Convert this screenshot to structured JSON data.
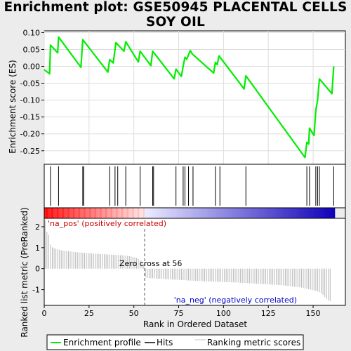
{
  "title_line1": "Enrichment plot: GSE50945 PLACENTAL CELLS",
  "title_line2": "SOY OIL",
  "chart_data": {
    "type": "line",
    "xlabel": "Rank in Ordered Dataset",
    "xlim": [
      0,
      168
    ],
    "x_ticks": [
      0,
      25,
      50,
      75,
      100,
      125,
      150
    ],
    "top_panel": {
      "ylabel": "Enrichment score (ES)",
      "ylim": [
        -0.29,
        0.105
      ],
      "y_ticks": [
        0.1,
        0.05,
        0.0,
        -0.05,
        -0.1,
        -0.15,
        -0.2,
        -0.25
      ],
      "y_tick_labels": [
        "0.10",
        "0.05",
        "0.00",
        "-0.05",
        "-0.10",
        "-0.15",
        "-0.20",
        "-0.25"
      ],
      "series": [
        {
          "color": "#00ee00",
          "x": [
            0,
            3,
            3.5,
            7.5,
            8,
            20.5,
            21.5,
            35.5,
            36.5,
            38.5,
            40,
            44.5,
            45.5,
            52.5,
            53.5,
            59.5,
            60.5,
            72.5,
            73.5,
            76.5,
            77.5,
            78.5,
            79.5,
            81.5,
            82.5,
            94.5,
            95.5,
            96.5,
            97.5,
            111.5,
            112.5,
            145.5,
            146.5,
            147.5,
            148,
            150.5,
            151.5,
            152.5,
            153.5,
            160.5,
            161.5
          ],
          "y": [
            -0.01,
            -0.022,
            0.063,
            0.04,
            0.087,
            -0.003,
            0.079,
            -0.017,
            0.02,
            0.01,
            0.07,
            0.045,
            0.073,
            0.013,
            0.045,
            0.002,
            0.045,
            -0.037,
            -0.008,
            -0.03,
            0.0,
            0.027,
            0.021,
            0.047,
            0.037,
            -0.02,
            0.012,
            0.005,
            0.031,
            -0.067,
            -0.028,
            -0.27,
            -0.225,
            -0.23,
            -0.183,
            -0.205,
            -0.13,
            -0.1,
            -0.037,
            -0.081,
            0.0
          ]
        }
      ]
    },
    "hits": [
      3.5,
      8,
      21.5,
      22,
      36.5,
      39.5,
      41,
      45.5,
      53.5,
      60.5,
      61,
      73.5,
      77.5,
      78.5,
      80.5,
      83,
      95.5,
      98,
      112.5,
      146.5,
      148,
      151.5,
      152.5,
      153.5,
      161.5
    ],
    "rank_metric": {
      "ylabel": "Ranked list metric (PreRanked)",
      "ylim": [
        -1.75,
        2.4
      ],
      "y_ticks": [
        2,
        1,
        0,
        -1
      ],
      "y_tick_labels": [
        "2",
        "1",
        "0",
        "-1"
      ],
      "values": [
        2.3,
        1.75,
        1.62,
        1.15,
        1.02,
        0.98,
        0.95,
        0.92,
        0.9,
        0.88,
        0.86,
        0.85,
        0.84,
        0.83,
        0.82,
        0.81,
        0.8,
        0.79,
        0.78,
        0.77,
        0.77,
        0.76,
        0.75,
        0.75,
        0.74,
        0.73,
        0.73,
        0.72,
        0.71,
        0.71,
        0.7,
        0.7,
        0.69,
        0.69,
        0.68,
        0.68,
        0.67,
        0.67,
        0.66,
        0.66,
        0.65,
        0.65,
        0.64,
        0.64,
        0.63,
        0.62,
        0.61,
        0.6,
        0.58,
        0.56,
        0.54,
        0.51,
        0.47,
        0.42,
        0.35,
        0.22,
        -0.42,
        -0.44,
        -0.45,
        -0.46,
        -0.46,
        -0.47,
        -0.47,
        -0.48,
        -0.48,
        -0.49,
        -0.49,
        -0.5,
        -0.5,
        -0.51,
        -0.51,
        -0.52,
        -0.52,
        -0.53,
        -0.53,
        -0.54,
        -0.54,
        -0.55,
        -0.55,
        -0.56,
        -0.56,
        -0.57,
        -0.57,
        -0.58,
        -0.58,
        -0.59,
        -0.59,
        -0.59,
        -0.6,
        -0.6,
        -0.6,
        -0.61,
        -0.61,
        -0.61,
        -0.62,
        -0.62,
        -0.62,
        -0.63,
        -0.63,
        -0.63,
        -0.64,
        -0.64,
        -0.64,
        -0.65,
        -0.65,
        -0.65,
        -0.66,
        -0.66,
        -0.67,
        -0.67,
        -0.68,
        -0.68,
        -0.69,
        -0.69,
        -0.7,
        -0.7,
        -0.71,
        -0.71,
        -0.72,
        -0.72,
        -0.73,
        -0.73,
        -0.74,
        -0.74,
        -0.75,
        -0.75,
        -0.76,
        -0.76,
        -0.77,
        -0.77,
        -0.78,
        -0.78,
        -0.79,
        -0.8,
        -0.81,
        -0.82,
        -0.83,
        -0.84,
        -0.85,
        -0.86,
        -0.87,
        -0.88,
        -0.89,
        -0.9,
        -0.92,
        -0.94,
        -0.96,
        -0.98,
        -1.0,
        -1.02,
        -1.04,
        -1.06,
        -1.08,
        -1.12,
        -1.18,
        -1.25,
        -1.35,
        -1.45,
        -1.52,
        -1.55
      ],
      "zero_cross": 56,
      "zero_cross_label": "Zero cross at 56",
      "pos_label": "'na_pos' (positively correlated)",
      "neg_label": "'na_neg' (negatively correlated)",
      "pos_label_color": "#cc0000",
      "neg_label_color": "#0000cc"
    },
    "colorbar": {
      "n": 162,
      "pos_color": "#ff0000",
      "neg_color": "#0000ff"
    },
    "legend": {
      "entries": [
        {
          "label": "Enrichment profile",
          "color": "#00ee00"
        },
        {
          "label": "Hits",
          "color": "#000000"
        },
        {
          "label": "Ranking metric scores",
          "color": "#c0c0c0"
        }
      ]
    }
  }
}
